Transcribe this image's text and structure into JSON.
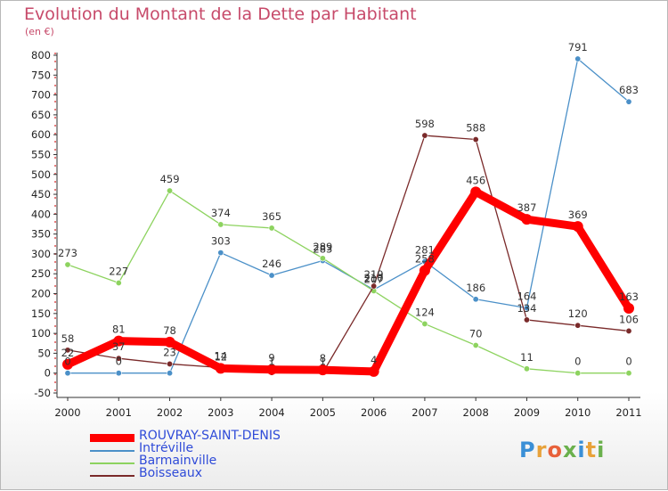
{
  "header": {
    "title": "Evolution du Montant de la Dette par Habitant",
    "unit": "(en €)"
  },
  "brand": {
    "text": "Proxiti",
    "letter_colors": [
      "#3a8fd6",
      "#e8a23a",
      "#e8613a",
      "#6ab04c",
      "#3a8fd6",
      "#e8a23a",
      "#6ab04c"
    ]
  },
  "chart_data": {
    "type": "line",
    "title": "Evolution du Montant de la Dette par Habitant",
    "ylabel": "(en €)",
    "xlabel": "",
    "x": [
      "2000",
      "2001",
      "2002",
      "2003",
      "2004",
      "2005",
      "2006",
      "2007",
      "2008",
      "2009",
      "2010",
      "2011"
    ],
    "ylim": [
      -50,
      800
    ],
    "yticks": [
      -50,
      0,
      50,
      100,
      150,
      200,
      250,
      300,
      350,
      400,
      450,
      500,
      550,
      600,
      650,
      700,
      750,
      800
    ],
    "grid": false,
    "legend_position": "bottom-left",
    "series": [
      {
        "name": "ROUVRAY-SAINT-DENIS",
        "color": "#ff0000",
        "emphasis": true,
        "values": [
          22,
          81,
          78,
          12,
          9,
          8,
          4,
          258,
          456,
          387,
          369,
          163
        ],
        "labels": [
          "22",
          "81",
          "78",
          "12",
          "9",
          "8",
          "4",
          "258",
          "456",
          "387",
          "369",
          "163"
        ]
      },
      {
        "name": "Intréville",
        "color": "#4b90c8",
        "values": [
          0,
          0,
          0,
          303,
          246,
          283,
          210,
          281,
          186,
          164,
          791,
          683
        ],
        "labels": [
          "0",
          "0",
          "",
          "303",
          "246",
          "283",
          "210",
          "281",
          "186",
          "164",
          "791",
          "683"
        ]
      },
      {
        "name": "Barmainville",
        "color": "#8dd35f",
        "values": [
          273,
          227,
          459,
          374,
          365,
          289,
          207,
          124,
          70,
          11,
          0,
          0
        ],
        "labels": [
          "273",
          "227",
          "459",
          "374",
          "365",
          "289",
          "207",
          "124",
          "70",
          "11",
          "0",
          "0"
        ]
      },
      {
        "name": "Boisseaux",
        "color": "#7a2a2a",
        "values": [
          58,
          37,
          23,
          14,
          1,
          1,
          219,
          598,
          588,
          134,
          120,
          106
        ],
        "labels": [
          "58",
          "37",
          "23",
          "14",
          "1",
          "1",
          "219",
          "598",
          "588",
          "134",
          "120",
          "106"
        ]
      }
    ]
  }
}
